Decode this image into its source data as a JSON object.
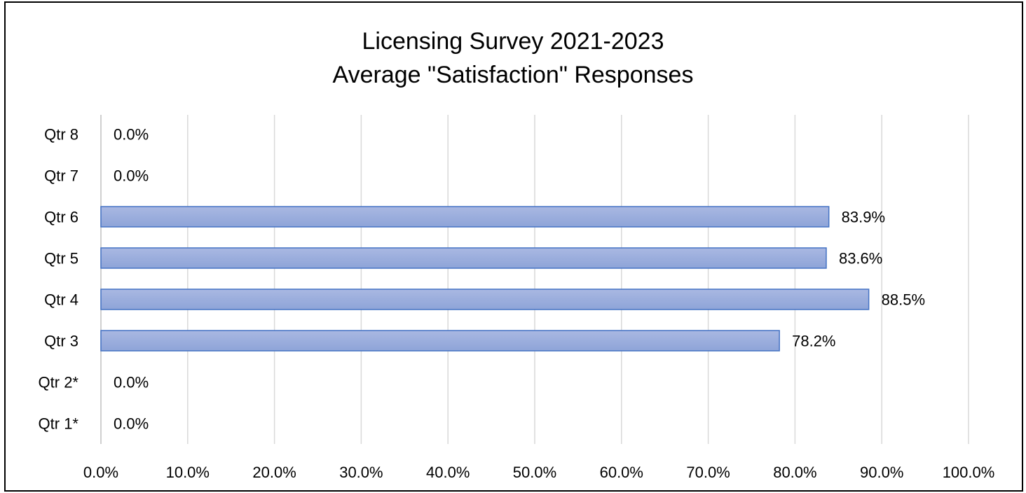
{
  "chart_data": {
    "type": "bar",
    "orientation": "horizontal",
    "title": [
      "Licensing Survey 2021-2023",
      "Average \"Satisfaction\" Responses"
    ],
    "categories": [
      "Qtr 8",
      "Qtr 7",
      "Qtr 6",
      "Qtr 5",
      "Qtr 4",
      "Qtr 3",
      "Qtr 2*",
      "Qtr 1*"
    ],
    "values": [
      0.0,
      0.0,
      83.9,
      83.6,
      88.5,
      78.2,
      0.0,
      0.0
    ],
    "data_labels": [
      "0.0%",
      "0.0%",
      "83.9%",
      "83.6%",
      "88.5%",
      "78.2%",
      "0.0%",
      "0.0%"
    ],
    "xlim": [
      0,
      100
    ],
    "x_ticks": [
      0,
      10,
      20,
      30,
      40,
      50,
      60,
      70,
      80,
      90,
      100
    ],
    "x_tick_labels": [
      "0.0%",
      "10.0%",
      "20.0%",
      "30.0%",
      "40.0%",
      "50.0%",
      "60.0%",
      "70.0%",
      "80.0%",
      "90.0%",
      "100.0%"
    ],
    "xlabel": "",
    "ylabel": "",
    "grid": "vertical",
    "legend": "none",
    "colors": {
      "bar_fill_top": "#a9b8e2",
      "bar_fill_bottom": "#8ea4d8",
      "bar_stroke": "#4472c4",
      "grid": "#d9d9d9",
      "axis": "#bfbfbf",
      "text": "#000000"
    }
  }
}
